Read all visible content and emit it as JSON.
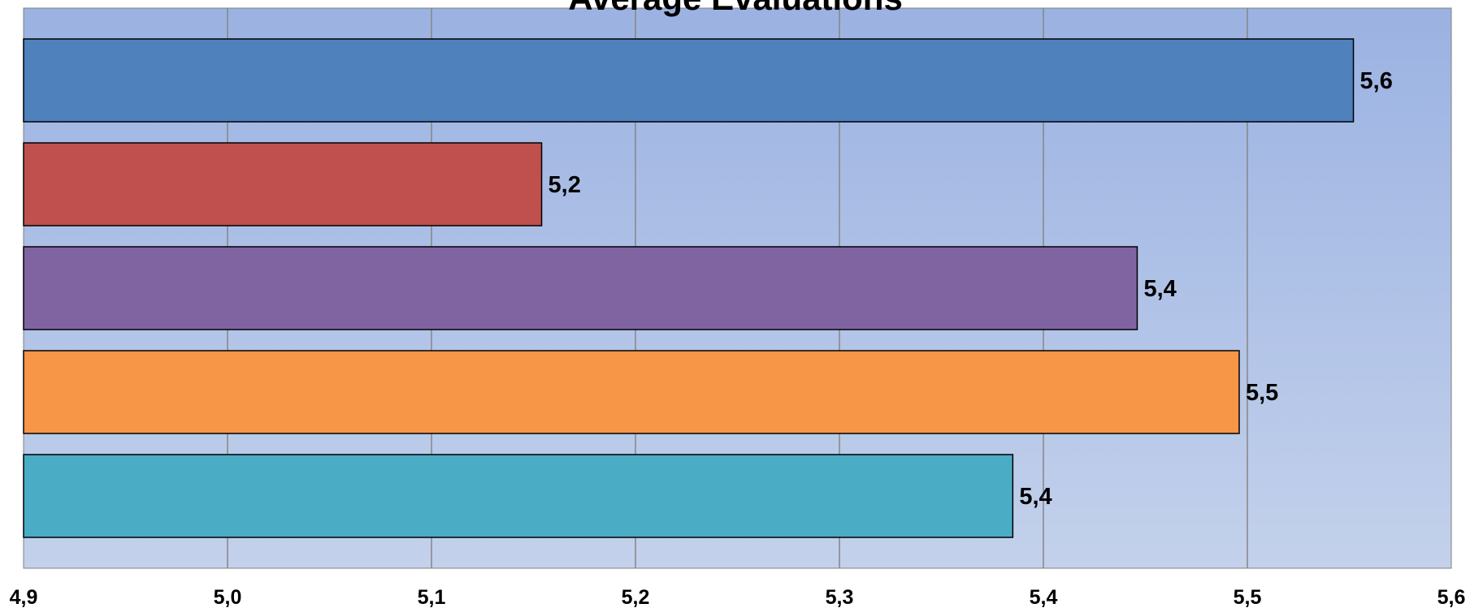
{
  "chart_data": {
    "type": "bar",
    "orientation": "horizontal",
    "title": "Average Evaluations",
    "xlabel": "",
    "ylabel": "",
    "xlim": [
      4.9,
      5.6
    ],
    "x_ticks": [
      {
        "value": 4.9,
        "label": "4,9"
      },
      {
        "value": 5.0,
        "label": "5,0"
      },
      {
        "value": 5.1,
        "label": "5,1"
      },
      {
        "value": 5.2,
        "label": "5,2"
      },
      {
        "value": 5.3,
        "label": "5,3"
      },
      {
        "value": 5.4,
        "label": "5,4"
      },
      {
        "value": 5.5,
        "label": "5,5"
      },
      {
        "value": 5.6,
        "label": "5,6"
      }
    ],
    "grid": true,
    "legend": "none",
    "plot_background": {
      "top": "#9bb2e2",
      "bottom": "#c3d1eb"
    },
    "bars": [
      {
        "value": 5.552,
        "label": "5,6",
        "color": "#4f81bd"
      },
      {
        "value": 5.154,
        "label": "5,2",
        "color": "#c0504d"
      },
      {
        "value": 5.446,
        "label": "5,4",
        "color": "#8064a2"
      },
      {
        "value": 5.496,
        "label": "5,5",
        "color": "#f79646"
      },
      {
        "value": 5.385,
        "label": "5,4",
        "color": "#4bacc6"
      }
    ]
  }
}
